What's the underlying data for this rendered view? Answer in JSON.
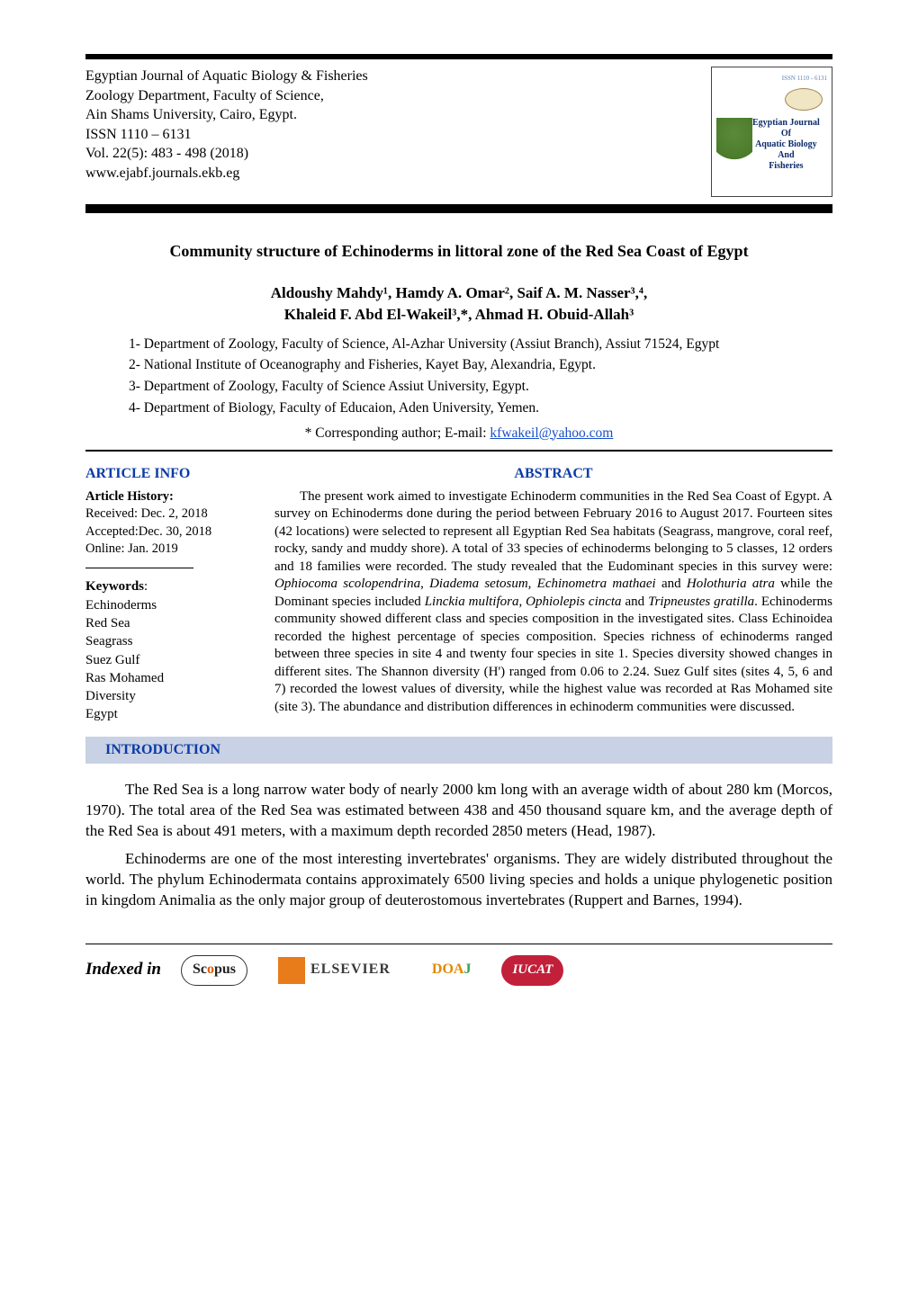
{
  "colors": {
    "text": "#000000",
    "background": "#ffffff",
    "heading_blue": "#0a3ba8",
    "intro_bar_bg": "#c9d1e4",
    "link_blue": "#1a4fc9",
    "iucat_red": "#c21f3a",
    "scopus_orange": "#e05a00",
    "doaj_orange": "#e08a00",
    "doaj_green": "#3aa24a",
    "elsevier_orange": "#e87b1a",
    "logo_border": "#444444",
    "logo_title_blue": "#0b2b6b"
  },
  "journal": {
    "line1": "Egyptian Journal of Aquatic Biology & Fisheries",
    "line2": "Zoology Department, Faculty of Science,",
    "line3": "Ain Shams University, Cairo, Egypt.",
    "line4": "ISSN 1110 – 6131",
    "line5": "Vol. 22(5): 483 - 498 (2018)",
    "line6": "www.ejabf.journals.ekb.eg",
    "logo_issn": "ISSN 1110 - 6131",
    "logo_title_l1": "Egyptian Journal",
    "logo_title_l2": "Of",
    "logo_title_l3": "Aquatic Biology",
    "logo_title_l4": "And",
    "logo_title_l5": "Fisheries"
  },
  "paper": {
    "title": "Community structure of Echinoderms in littoral zone of the Red Sea Coast of Egypt",
    "authors_line1": "Aldoushy Mahdy¹, Hamdy A. Omar², Saif  A. M. Nasser³,⁴,",
    "authors_line2": "Khaleid F. Abd El-Wakeil³,*, Ahmad H. Obuid-Allah³",
    "affiliations": [
      "1-   Department of Zoology, Faculty of Science, Al-Azhar University (Assiut Branch), Assiut 71524, Egypt",
      "2-   National Institute of Oceanography and Fisheries, Kayet Bay, Alexandria, Egypt.",
      "3-   Department of Zoology, Faculty of Science Assiut University, Egypt.",
      "4- Department of Biology, Faculty of Educaion, Aden University, Yemen."
    ],
    "corresponding_prefix": "* Corresponding author; E-mail: ",
    "corresponding_email": "kfwakeil@yahoo.com"
  },
  "article_info": {
    "heading": "ARTICLE INFO",
    "history_label": "Article History:",
    "received": "Received: Dec. 2, 2018",
    "accepted": "Accepted:Dec. 30, 2018",
    "online": "Online: Jan. 2019",
    "keywords_label": "Keywords",
    "keywords": [
      "Echinoderms",
      "Red Sea",
      "Seagrass",
      "Suez Gulf",
      "Ras Mohamed",
      "Diversity",
      "Egypt"
    ]
  },
  "abstract": {
    "heading": "ABSTRACT",
    "text_parts": [
      "The present work aimed to investigate Echinoderm communities in the Red Sea Coast of Egypt. A survey on Echinoderms done during the period between February 2016 to August 2017. Fourteen sites (42 locations) were selected to represent all Egyptian Red Sea habitats (Seagrass, mangrove, coral reef, rocky, sandy and muddy shore). A total of 33 species of echinoderms belonging to 5 classes, 12 orders and 18 families were recorded. The study revealed that the Eudominant species in this survey were: ",
      "Ophiocoma scolopendrina",
      ", ",
      "Diadema setosum, Echinometra mathaei",
      " and ",
      "Holothuria atra",
      " while the Dominant species included ",
      "Linckia multifora",
      ", ",
      "Ophiolepis cincta",
      " and ",
      "Tripneustes gratilla",
      ". Echinoderms community showed different class and species composition in the investigated sites. Class Echinoidea recorded the highest percentage of species composition. Species richness of echinoderms ranged between three species in site 4 and twenty four species in site 1. Species diversity showed changes in different sites. The Shannon diversity (H') ranged from 0.06 to 2.24. Suez Gulf sites (sites 4, 5, 6 and 7)  recorded the lowest values of diversity, while the highest value was recorded at Ras Mohamed site (site 3). The abundance and distribution differences in echinoderm communities were discussed."
    ],
    "italic_indices": [
      1,
      3,
      5,
      7,
      9,
      11
    ]
  },
  "introduction": {
    "heading": "INTRODUCTION",
    "paragraphs": [
      "The Red Sea is a long narrow water body of nearly 2000 km long with  an average width of about 280 km (Morcos, 1970). The total area of the Red Sea was estimated between 438 and 450 thousand square km, and the average depth of the Red Sea is about 491 meters, with a maximum depth recorded 2850 meters (Head, 1987).",
      "Echinoderms are one of the most interesting invertebrates' organisms. They are widely distributed throughout the world. The phylum Echinodermata contains approximately 6500 living species and holds a unique phylogenetic position in kingdom Animalia as the only major group of deuterostomous invertebrates (Ruppert and Barnes, 1994)."
    ]
  },
  "footer": {
    "indexed_in": "Indexed in",
    "scopus": "Scopus",
    "elsevier": "ELSEVIER",
    "doaj_doa": "DOA",
    "doaj_j": "J",
    "iucat": "IUCAT"
  }
}
